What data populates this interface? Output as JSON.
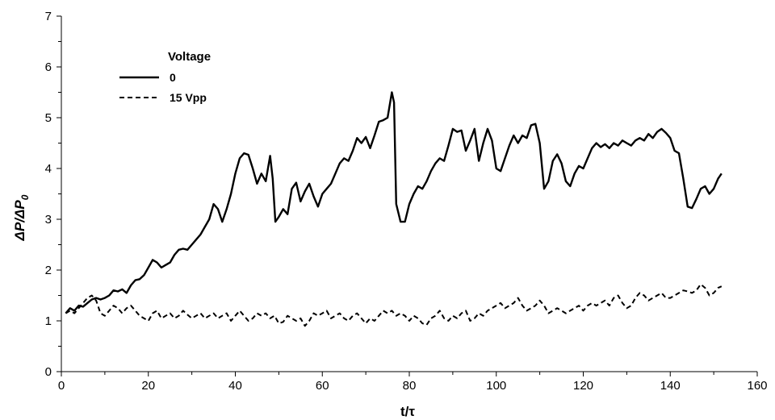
{
  "chart_data": {
    "type": "line",
    "title": "",
    "xlabel": "t/τ",
    "ylabel_parts": [
      "ΔP/ΔP",
      "0"
    ],
    "xlim": [
      0,
      160
    ],
    "ylim": [
      0,
      7
    ],
    "x_ticks": [
      0,
      20,
      40,
      60,
      80,
      100,
      120,
      140,
      160
    ],
    "y_ticks": [
      0,
      1,
      2,
      3,
      4,
      5,
      6,
      7
    ],
    "grid": false,
    "legend": {
      "title": "Voltage",
      "placement": "top-left"
    },
    "series": [
      {
        "name": "0",
        "line_style": "solid",
        "color": "#000000",
        "points": [
          [
            1,
            1.15
          ],
          [
            2,
            1.25
          ],
          [
            3,
            1.2
          ],
          [
            4,
            1.3
          ],
          [
            5,
            1.28
          ],
          [
            6,
            1.35
          ],
          [
            7,
            1.42
          ],
          [
            8,
            1.45
          ],
          [
            9,
            1.42
          ],
          [
            10,
            1.45
          ],
          [
            11,
            1.5
          ],
          [
            12,
            1.6
          ],
          [
            13,
            1.58
          ],
          [
            14,
            1.62
          ],
          [
            15,
            1.55
          ],
          [
            16,
            1.7
          ],
          [
            17,
            1.8
          ],
          [
            18,
            1.82
          ],
          [
            19,
            1.9
          ],
          [
            20,
            2.05
          ],
          [
            21,
            2.2
          ],
          [
            22,
            2.15
          ],
          [
            23,
            2.05
          ],
          [
            24,
            2.1
          ],
          [
            25,
            2.15
          ],
          [
            26,
            2.3
          ],
          [
            27,
            2.4
          ],
          [
            28,
            2.42
          ],
          [
            29,
            2.4
          ],
          [
            30,
            2.5
          ],
          [
            31,
            2.6
          ],
          [
            32,
            2.7
          ],
          [
            33,
            2.85
          ],
          [
            34,
            3.0
          ],
          [
            35,
            3.3
          ],
          [
            36,
            3.2
          ],
          [
            37,
            2.95
          ],
          [
            38,
            3.2
          ],
          [
            39,
            3.5
          ],
          [
            40,
            3.9
          ],
          [
            41,
            4.2
          ],
          [
            42,
            4.3
          ],
          [
            43,
            4.27
          ],
          [
            44,
            4.0
          ],
          [
            45,
            3.7
          ],
          [
            46,
            3.9
          ],
          [
            47,
            3.75
          ],
          [
            48,
            4.25
          ],
          [
            48.6,
            3.8
          ],
          [
            49.2,
            2.95
          ],
          [
            50,
            3.05
          ],
          [
            51,
            3.2
          ],
          [
            52,
            3.1
          ],
          [
            53,
            3.6
          ],
          [
            54,
            3.72
          ],
          [
            55,
            3.35
          ],
          [
            56,
            3.55
          ],
          [
            57,
            3.7
          ],
          [
            58,
            3.45
          ],
          [
            59,
            3.25
          ],
          [
            60,
            3.5
          ],
          [
            61,
            3.6
          ],
          [
            62,
            3.7
          ],
          [
            63,
            3.9
          ],
          [
            64,
            4.1
          ],
          [
            65,
            4.2
          ],
          [
            66,
            4.15
          ],
          [
            67,
            4.35
          ],
          [
            68,
            4.6
          ],
          [
            69,
            4.5
          ],
          [
            70,
            4.62
          ],
          [
            71,
            4.4
          ],
          [
            72,
            4.65
          ],
          [
            73,
            4.92
          ],
          [
            74,
            4.95
          ],
          [
            75,
            5.0
          ],
          [
            76,
            5.5
          ],
          [
            76.5,
            5.3
          ],
          [
            77,
            3.3
          ],
          [
            78,
            2.95
          ],
          [
            79,
            2.95
          ],
          [
            80,
            3.3
          ],
          [
            81,
            3.5
          ],
          [
            82,
            3.65
          ],
          [
            83,
            3.6
          ],
          [
            84,
            3.75
          ],
          [
            85,
            3.95
          ],
          [
            86,
            4.1
          ],
          [
            87,
            4.2
          ],
          [
            88,
            4.15
          ],
          [
            89,
            4.45
          ],
          [
            90,
            4.78
          ],
          [
            91,
            4.72
          ],
          [
            92,
            4.75
          ],
          [
            93,
            4.35
          ],
          [
            94,
            4.55
          ],
          [
            95,
            4.78
          ],
          [
            96,
            4.15
          ],
          [
            97,
            4.5
          ],
          [
            98,
            4.78
          ],
          [
            99,
            4.55
          ],
          [
            100,
            4.0
          ],
          [
            101,
            3.95
          ],
          [
            102,
            4.2
          ],
          [
            103,
            4.45
          ],
          [
            104,
            4.65
          ],
          [
            105,
            4.5
          ],
          [
            106,
            4.65
          ],
          [
            107,
            4.6
          ],
          [
            108,
            4.85
          ],
          [
            109,
            4.88
          ],
          [
            110,
            4.5
          ],
          [
            111,
            3.6
          ],
          [
            112,
            3.75
          ],
          [
            113,
            4.15
          ],
          [
            114,
            4.28
          ],
          [
            115,
            4.1
          ],
          [
            116,
            3.75
          ],
          [
            117,
            3.65
          ],
          [
            118,
            3.9
          ],
          [
            119,
            4.05
          ],
          [
            120,
            4.0
          ],
          [
            121,
            4.2
          ],
          [
            122,
            4.4
          ],
          [
            123,
            4.5
          ],
          [
            124,
            4.42
          ],
          [
            125,
            4.48
          ],
          [
            126,
            4.4
          ],
          [
            127,
            4.5
          ],
          [
            128,
            4.45
          ],
          [
            129,
            4.55
          ],
          [
            130,
            4.5
          ],
          [
            131,
            4.45
          ],
          [
            132,
            4.55
          ],
          [
            133,
            4.6
          ],
          [
            134,
            4.55
          ],
          [
            135,
            4.68
          ],
          [
            136,
            4.6
          ],
          [
            137,
            4.72
          ],
          [
            138,
            4.78
          ],
          [
            139,
            4.7
          ],
          [
            140,
            4.6
          ],
          [
            141,
            4.35
          ],
          [
            142,
            4.3
          ],
          [
            143,
            3.8
          ],
          [
            144,
            3.25
          ],
          [
            145,
            3.22
          ],
          [
            146,
            3.4
          ],
          [
            147,
            3.6
          ],
          [
            148,
            3.65
          ],
          [
            149,
            3.5
          ],
          [
            150,
            3.6
          ],
          [
            151,
            3.8
          ],
          [
            151.8,
            3.9
          ]
        ]
      },
      {
        "name": "15 Vpp",
        "line_style": "dashed",
        "color": "#000000",
        "points": [
          [
            1,
            1.15
          ],
          [
            2,
            1.2
          ],
          [
            3,
            1.15
          ],
          [
            4,
            1.25
          ],
          [
            5,
            1.35
          ],
          [
            6,
            1.45
          ],
          [
            7,
            1.5
          ],
          [
            8,
            1.4
          ],
          [
            9,
            1.15
          ],
          [
            10,
            1.1
          ],
          [
            11,
            1.2
          ],
          [
            12,
            1.3
          ],
          [
            13,
            1.25
          ],
          [
            14,
            1.15
          ],
          [
            15,
            1.25
          ],
          [
            16,
            1.3
          ],
          [
            17,
            1.2
          ],
          [
            18,
            1.1
          ],
          [
            19,
            1.05
          ],
          [
            20,
            1.0
          ],
          [
            21,
            1.15
          ],
          [
            22,
            1.2
          ],
          [
            23,
            1.05
          ],
          [
            24,
            1.1
          ],
          [
            25,
            1.15
          ],
          [
            26,
            1.05
          ],
          [
            27,
            1.1
          ],
          [
            28,
            1.2
          ],
          [
            29,
            1.12
          ],
          [
            30,
            1.05
          ],
          [
            31,
            1.1
          ],
          [
            32,
            1.15
          ],
          [
            33,
            1.05
          ],
          [
            34,
            1.1
          ],
          [
            35,
            1.15
          ],
          [
            36,
            1.05
          ],
          [
            37,
            1.1
          ],
          [
            38,
            1.15
          ],
          [
            39,
            1.0
          ],
          [
            40,
            1.1
          ],
          [
            41,
            1.2
          ],
          [
            42,
            1.1
          ],
          [
            43,
            1.0
          ],
          [
            44,
            1.05
          ],
          [
            45,
            1.15
          ],
          [
            46,
            1.1
          ],
          [
            47,
            1.15
          ],
          [
            48,
            1.05
          ],
          [
            49,
            1.1
          ],
          [
            50,
            0.95
          ],
          [
            51,
            0.98
          ],
          [
            52,
            1.1
          ],
          [
            53,
            1.05
          ],
          [
            54,
            1.0
          ],
          [
            55,
            1.05
          ],
          [
            56,
            0.9
          ],
          [
            57,
            1.0
          ],
          [
            58,
            1.15
          ],
          [
            59,
            1.1
          ],
          [
            60,
            1.15
          ],
          [
            61,
            1.2
          ],
          [
            62,
            1.05
          ],
          [
            63,
            1.1
          ],
          [
            64,
            1.15
          ],
          [
            65,
            1.05
          ],
          [
            66,
            1.0
          ],
          [
            67,
            1.1
          ],
          [
            68,
            1.15
          ],
          [
            69,
            1.05
          ],
          [
            70,
            0.95
          ],
          [
            71,
            1.05
          ],
          [
            72,
            1.0
          ],
          [
            73,
            1.1
          ],
          [
            74,
            1.2
          ],
          [
            75,
            1.15
          ],
          [
            76,
            1.2
          ],
          [
            77,
            1.1
          ],
          [
            78,
            1.15
          ],
          [
            79,
            1.1
          ],
          [
            80,
            1.0
          ],
          [
            81,
            1.1
          ],
          [
            82,
            1.05
          ],
          [
            83,
            0.95
          ],
          [
            84,
            0.92
          ],
          [
            85,
            1.05
          ],
          [
            86,
            1.1
          ],
          [
            87,
            1.2
          ],
          [
            88,
            1.05
          ],
          [
            89,
            1.0
          ],
          [
            90,
            1.1
          ],
          [
            91,
            1.05
          ],
          [
            92,
            1.15
          ],
          [
            93,
            1.2
          ],
          [
            94,
            1.0
          ],
          [
            95,
            1.05
          ],
          [
            96,
            1.15
          ],
          [
            97,
            1.1
          ],
          [
            98,
            1.2
          ],
          [
            99,
            1.25
          ],
          [
            100,
            1.3
          ],
          [
            101,
            1.35
          ],
          [
            102,
            1.25
          ],
          [
            103,
            1.3
          ],
          [
            104,
            1.35
          ],
          [
            105,
            1.45
          ],
          [
            106,
            1.3
          ],
          [
            107,
            1.2
          ],
          [
            108,
            1.25
          ],
          [
            109,
            1.3
          ],
          [
            110,
            1.4
          ],
          [
            111,
            1.3
          ],
          [
            112,
            1.15
          ],
          [
            113,
            1.2
          ],
          [
            114,
            1.25
          ],
          [
            115,
            1.2
          ],
          [
            116,
            1.15
          ],
          [
            117,
            1.2
          ],
          [
            118,
            1.25
          ],
          [
            119,
            1.3
          ],
          [
            120,
            1.2
          ],
          [
            121,
            1.3
          ],
          [
            122,
            1.35
          ],
          [
            123,
            1.3
          ],
          [
            124,
            1.35
          ],
          [
            125,
            1.4
          ],
          [
            126,
            1.3
          ],
          [
            127,
            1.45
          ],
          [
            128,
            1.5
          ],
          [
            129,
            1.35
          ],
          [
            130,
            1.25
          ],
          [
            131,
            1.3
          ],
          [
            132,
            1.45
          ],
          [
            133,
            1.55
          ],
          [
            134,
            1.5
          ],
          [
            135,
            1.4
          ],
          [
            136,
            1.45
          ],
          [
            137,
            1.5
          ],
          [
            138,
            1.55
          ],
          [
            139,
            1.45
          ],
          [
            140,
            1.45
          ],
          [
            141,
            1.5
          ],
          [
            142,
            1.55
          ],
          [
            143,
            1.6
          ],
          [
            144,
            1.58
          ],
          [
            145,
            1.55
          ],
          [
            146,
            1.6
          ],
          [
            147,
            1.72
          ],
          [
            148,
            1.65
          ],
          [
            149,
            1.5
          ],
          [
            150,
            1.55
          ],
          [
            151,
            1.65
          ],
          [
            151.8,
            1.68
          ]
        ]
      }
    ]
  }
}
